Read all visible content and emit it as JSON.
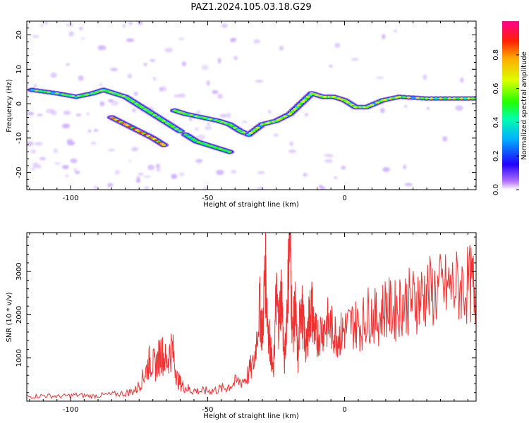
{
  "figure_title": "PAZ1.2024.105.03.18.G29",
  "chart_data": [
    {
      "type": "heatmap",
      "xlabel": "Height of straight line (km)",
      "ylabel": "Frequency (Hz)",
      "xlim": [
        -116,
        48
      ],
      "ylim": [
        -25,
        24
      ],
      "xticks": [
        -100,
        -50,
        0
      ],
      "yticks": [
        -20,
        -10,
        0,
        10,
        20
      ],
      "colorbar": {
        "label": "Normalized spectral amplitude",
        "range": [
          0,
          1
        ],
        "ticks": [
          "0.0",
          "0.2",
          "0.4",
          "0.6",
          "0.8"
        ],
        "tick_values": [
          0,
          0.2,
          0.4,
          0.6,
          0.8
        ]
      },
      "ridges": [
        {
          "x": [
            -114,
            -105,
            -98,
            -92,
            -88,
            -84,
            -80,
            -76,
            -72,
            -68,
            -64,
            -60
          ],
          "y": [
            4,
            3,
            2,
            3,
            4,
            3,
            2,
            0,
            -2,
            -4,
            -6,
            -8
          ]
        },
        {
          "x": [
            -62,
            -58,
            -52,
            -46,
            -42,
            -38,
            -35
          ],
          "y": [
            -2,
            -3,
            -4,
            -5,
            -6,
            -8,
            -9
          ]
        },
        {
          "x": [
            -58,
            -54,
            -50,
            -46,
            -42
          ],
          "y": [
            -9,
            -11,
            -12,
            -13,
            -14
          ]
        },
        {
          "x": [
            -35,
            -30,
            -25,
            -20,
            -16,
            -12,
            -8,
            -4,
            0,
            4,
            8,
            14,
            20,
            30,
            40,
            48
          ],
          "y": [
            -9,
            -6,
            -5,
            -3,
            0,
            3,
            2,
            2,
            1,
            -1,
            -1,
            1,
            2,
            1.5,
            1.5,
            1.5
          ]
        },
        {
          "x": [
            -85,
            -80,
            -75,
            -70,
            -66
          ],
          "y": [
            -4,
            -6,
            -8,
            -10,
            -12
          ]
        }
      ],
      "intensity": [
        0.6,
        0.6,
        0.55,
        0.7,
        0.9,
        0.95
      ]
    },
    {
      "type": "line",
      "xlabel": "Height of straight line (km)",
      "ylabel": "SNR (10 * v/v)",
      "xlim": [
        -116,
        48
      ],
      "ylim": [
        0,
        3900
      ],
      "xticks": [
        -100,
        -50,
        0
      ],
      "yticks": [
        1000,
        2000,
        3000
      ],
      "color": "#ee3333",
      "series": [
        {
          "x": [
            -116,
            -110,
            -104,
            -98,
            -92,
            -86,
            -80,
            -76,
            -73,
            -71,
            -69,
            -67,
            -65,
            -63,
            -61,
            -59,
            -56,
            -52,
            -48,
            -44,
            -40,
            -36,
            -33,
            -31,
            -30,
            -29,
            -28,
            -27,
            -26,
            -25,
            -24,
            -23,
            -22,
            -21,
            -20,
            -19,
            -18,
            -17,
            -16,
            -15,
            -14,
            -13,
            -12,
            -11,
            -10,
            -8,
            -6,
            -4,
            -2,
            0,
            3,
            6,
            9,
            12,
            15,
            18,
            21,
            24,
            27,
            30,
            34,
            38,
            42,
            46,
            48
          ],
          "y": [
            100,
            130,
            110,
            140,
            120,
            150,
            180,
            260,
            620,
            950,
            800,
            1150,
            900,
            1250,
            500,
            350,
            250,
            230,
            250,
            300,
            420,
            520,
            900,
            2200,
            1500,
            3150,
            1800,
            1200,
            600,
            2400,
            1800,
            2600,
            800,
            2200,
            3850,
            1500,
            2200,
            900,
            2400,
            1700,
            1200,
            1900,
            2200,
            1600,
            1500,
            1700,
            1800,
            1600,
            1500,
            1650,
            1800,
            1750,
            2050,
            1900,
            2200,
            2050,
            2300,
            2300,
            2400,
            2500,
            2550,
            2600,
            2650,
            2700,
            2600
          ]
        }
      ]
    }
  ]
}
